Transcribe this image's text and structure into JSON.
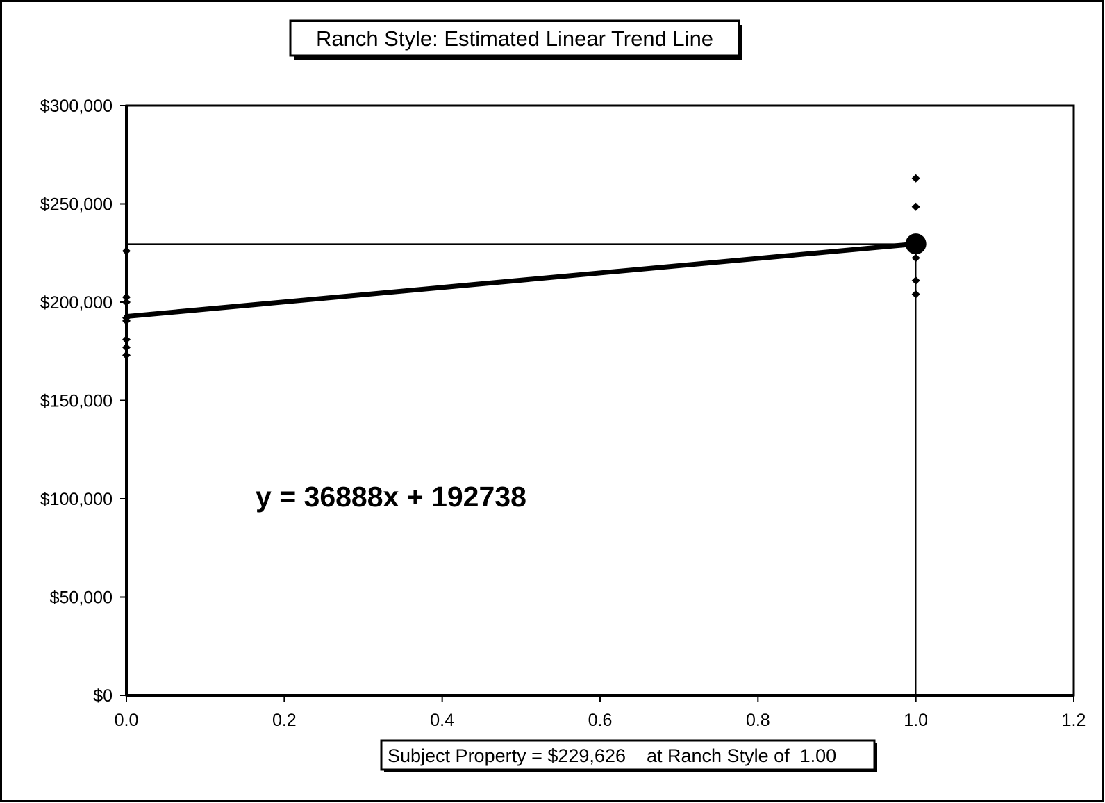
{
  "chart_data": {
    "type": "scatter",
    "title": "Ranch Style: Estimated Linear Trend Line",
    "xlabel": "",
    "ylabel": "",
    "xlim": [
      0,
      1.2
    ],
    "ylim": [
      0,
      300000
    ],
    "x_ticks": [
      0,
      0.2,
      0.4,
      0.6,
      0.8,
      1.0,
      1.2
    ],
    "x_tick_labels": [
      "0.0",
      "0.2",
      "0.4",
      "0.6",
      "0.8",
      "1.0",
      "1.2"
    ],
    "y_ticks": [
      0,
      50000,
      100000,
      150000,
      200000,
      250000,
      300000
    ],
    "y_tick_labels": [
      "$0",
      "$50,000",
      "$100,000",
      "$150,000",
      "$200,000",
      "$250,000",
      "$300,000"
    ],
    "grid": false,
    "legend": "none",
    "series": [
      {
        "type": "scatter",
        "marker": "diamond",
        "points": [
          {
            "x": 0,
            "y": 226000
          },
          {
            "x": 0,
            "y": 202500
          },
          {
            "x": 0,
            "y": 200000
          },
          {
            "x": 0,
            "y": 192000
          },
          {
            "x": 0,
            "y": 190500
          },
          {
            "x": 0,
            "y": 181000
          },
          {
            "x": 0,
            "y": 177000
          },
          {
            "x": 0,
            "y": 173000
          },
          {
            "x": 1,
            "y": 263000
          },
          {
            "x": 1,
            "y": 248500
          },
          {
            "x": 1,
            "y": 222500
          },
          {
            "x": 1,
            "y": 211000
          },
          {
            "x": 1,
            "y": 204000
          }
        ]
      },
      {
        "type": "line",
        "role": "trend",
        "slope": 36888,
        "intercept": 192738,
        "x": [
          0,
          1
        ]
      }
    ],
    "subject": {
      "x": 1.0,
      "y": 229626
    },
    "annotations": {
      "equation": "y = 36888x + 192738",
      "footer": "Subject Property = $229,626    at Ranch Style of  1.00"
    }
  }
}
